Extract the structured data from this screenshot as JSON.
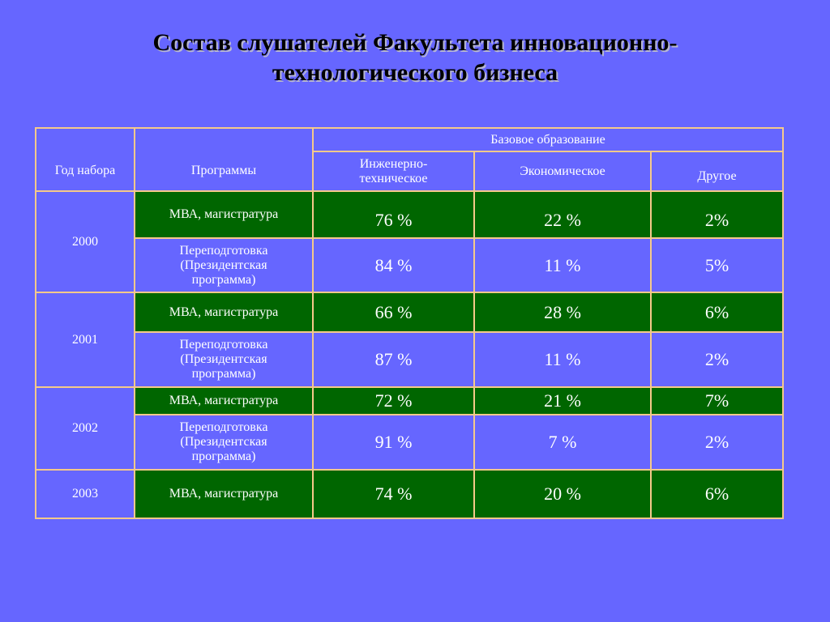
{
  "title": {
    "line1": "Состав слушателей Факультета инновационно-",
    "line2": "технологического бизнеса"
  },
  "table": {
    "headers": {
      "year": "Год набора",
      "programs": "Программы",
      "base_education": "Базовое образование",
      "engineering": "Инженерно-\nтехническое",
      "economic": "Экономическое",
      "other": "Другое"
    },
    "groups": [
      {
        "year": "2000",
        "rows": [
          {
            "program": "МВА, магистратура",
            "engineering": "76 %",
            "economic": "22 %",
            "other": "2%"
          },
          {
            "program": "Переподготовка\n(Президентская\nпрограмма)",
            "engineering": "84 %",
            "economic": "11 %",
            "other": "5%"
          }
        ]
      },
      {
        "year": "2001",
        "rows": [
          {
            "program": "МВА, магистратура",
            "engineering": "66 %",
            "economic": "28 %",
            "other": "6%"
          },
          {
            "program": "Переподготовка\n(Президентская\nпрограмма)",
            "engineering": "87 %",
            "economic": "11 %",
            "other": "2%"
          }
        ]
      },
      {
        "year": "2002",
        "rows": [
          {
            "program": "МВА, магистратура",
            "engineering": "72 %",
            "economic": "21 %",
            "other": "7%"
          },
          {
            "program": "Переподготовка\n(Президентская\nпрограмма)",
            "engineering": "91 %",
            "economic": "7 %",
            "other": "2%"
          }
        ]
      },
      {
        "year": "2003",
        "rows": [
          {
            "program": "МВА, магистратура",
            "engineering": "74 %",
            "economic": "20 %",
            "other": "6%"
          }
        ]
      }
    ]
  },
  "colors": {
    "background": "#6666ff",
    "mba_row": "#006600",
    "grid_lines": "#f5c98a",
    "text": "#ffffff"
  }
}
